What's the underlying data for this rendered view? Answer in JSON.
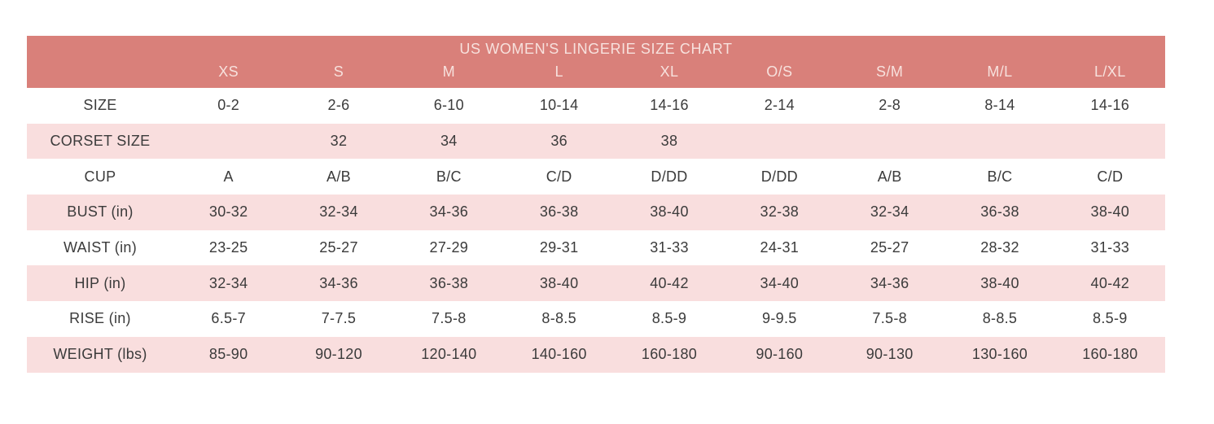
{
  "table": {
    "title": "US WOMEN'S LINGERIE SIZE CHART",
    "columns": [
      "XS",
      "S",
      "M",
      "L",
      "XL",
      "O/S",
      "S/M",
      "M/L",
      "L/XL"
    ],
    "rows": [
      {
        "label": "SIZE",
        "values": [
          "0-2",
          "2-6",
          "6-10",
          "10-14",
          "14-16",
          "2-14",
          "2-8",
          "8-14",
          "14-16"
        ]
      },
      {
        "label": "CORSET SIZE",
        "values": [
          "",
          "32",
          "34",
          "36",
          "38",
          "",
          "",
          "",
          ""
        ]
      },
      {
        "label": "CUP",
        "values": [
          "A",
          "A/B",
          "B/C",
          "C/D",
          "D/DD",
          "D/DD",
          "A/B",
          "B/C",
          "C/D"
        ]
      },
      {
        "label": "BUST (in)",
        "values": [
          "30-32",
          "32-34",
          "34-36",
          "36-38",
          "38-40",
          "32-38",
          "32-34",
          "36-38",
          "38-40"
        ]
      },
      {
        "label": "WAIST (in)",
        "values": [
          "23-25",
          "25-27",
          "27-29",
          "29-31",
          "31-33",
          "24-31",
          "25-27",
          "28-32",
          "31-33"
        ]
      },
      {
        "label": "HIP (in)",
        "values": [
          "32-34",
          "34-36",
          "36-38",
          "38-40",
          "40-42",
          "34-40",
          "34-36",
          "38-40",
          "40-42"
        ]
      },
      {
        "label": "RISE (in)",
        "values": [
          "6.5-7",
          "7-7.5",
          "7.5-8",
          "8-8.5",
          "8.5-9",
          "9-9.5",
          "7.5-8",
          "8-8.5",
          "8.5-9"
        ]
      },
      {
        "label": "WEIGHT (lbs)",
        "values": [
          "85-90",
          "90-120",
          "120-140",
          "140-160",
          "160-180",
          "90-160",
          "90-130",
          "130-160",
          "160-180"
        ]
      }
    ],
    "colors": {
      "header_band": "#D9807A",
      "stripe_pink": "#F9DEDE",
      "row_white": "#FFFFFF",
      "header_text": "#F7E1DD",
      "body_text": "#3B3B3B"
    }
  },
  "chart_data": {
    "type": "table",
    "title": "US WOMEN'S LINGERIE SIZE CHART",
    "columns": [
      "XS",
      "S",
      "M",
      "L",
      "XL",
      "O/S",
      "S/M",
      "M/L",
      "L/XL"
    ],
    "row_headers": [
      "SIZE",
      "CORSET SIZE",
      "CUP",
      "BUST (in)",
      "WAIST (in)",
      "HIP (in)",
      "RISE (in)",
      "WEIGHT (lbs)"
    ],
    "cells": [
      [
        "0-2",
        "2-6",
        "6-10",
        "10-14",
        "14-16",
        "2-14",
        "2-8",
        "8-14",
        "14-16"
      ],
      [
        "",
        "32",
        "34",
        "36",
        "38",
        "",
        "",
        "",
        ""
      ],
      [
        "A",
        "A/B",
        "B/C",
        "C/D",
        "D/DD",
        "D/DD",
        "A/B",
        "B/C",
        "C/D"
      ],
      [
        "30-32",
        "32-34",
        "34-36",
        "36-38",
        "38-40",
        "32-38",
        "32-34",
        "36-38",
        "38-40"
      ],
      [
        "23-25",
        "25-27",
        "27-29",
        "29-31",
        "31-33",
        "24-31",
        "25-27",
        "28-32",
        "31-33"
      ],
      [
        "32-34",
        "34-36",
        "36-38",
        "38-40",
        "40-42",
        "34-40",
        "34-36",
        "38-40",
        "40-42"
      ],
      [
        "6.5-7",
        "7-7.5",
        "7.5-8",
        "8-8.5",
        "8.5-9",
        "9-9.5",
        "7.5-8",
        "8-8.5",
        "8.5-9"
      ],
      [
        "85-90",
        "90-120",
        "120-140",
        "140-160",
        "160-180",
        "90-160",
        "90-130",
        "130-160",
        "160-180"
      ]
    ],
    "layout_hints": {
      "striped_rows": "alternating white and light pink, starting white",
      "header_band": "salmon with title row and size-column header row",
      "grid_lines": false
    }
  }
}
